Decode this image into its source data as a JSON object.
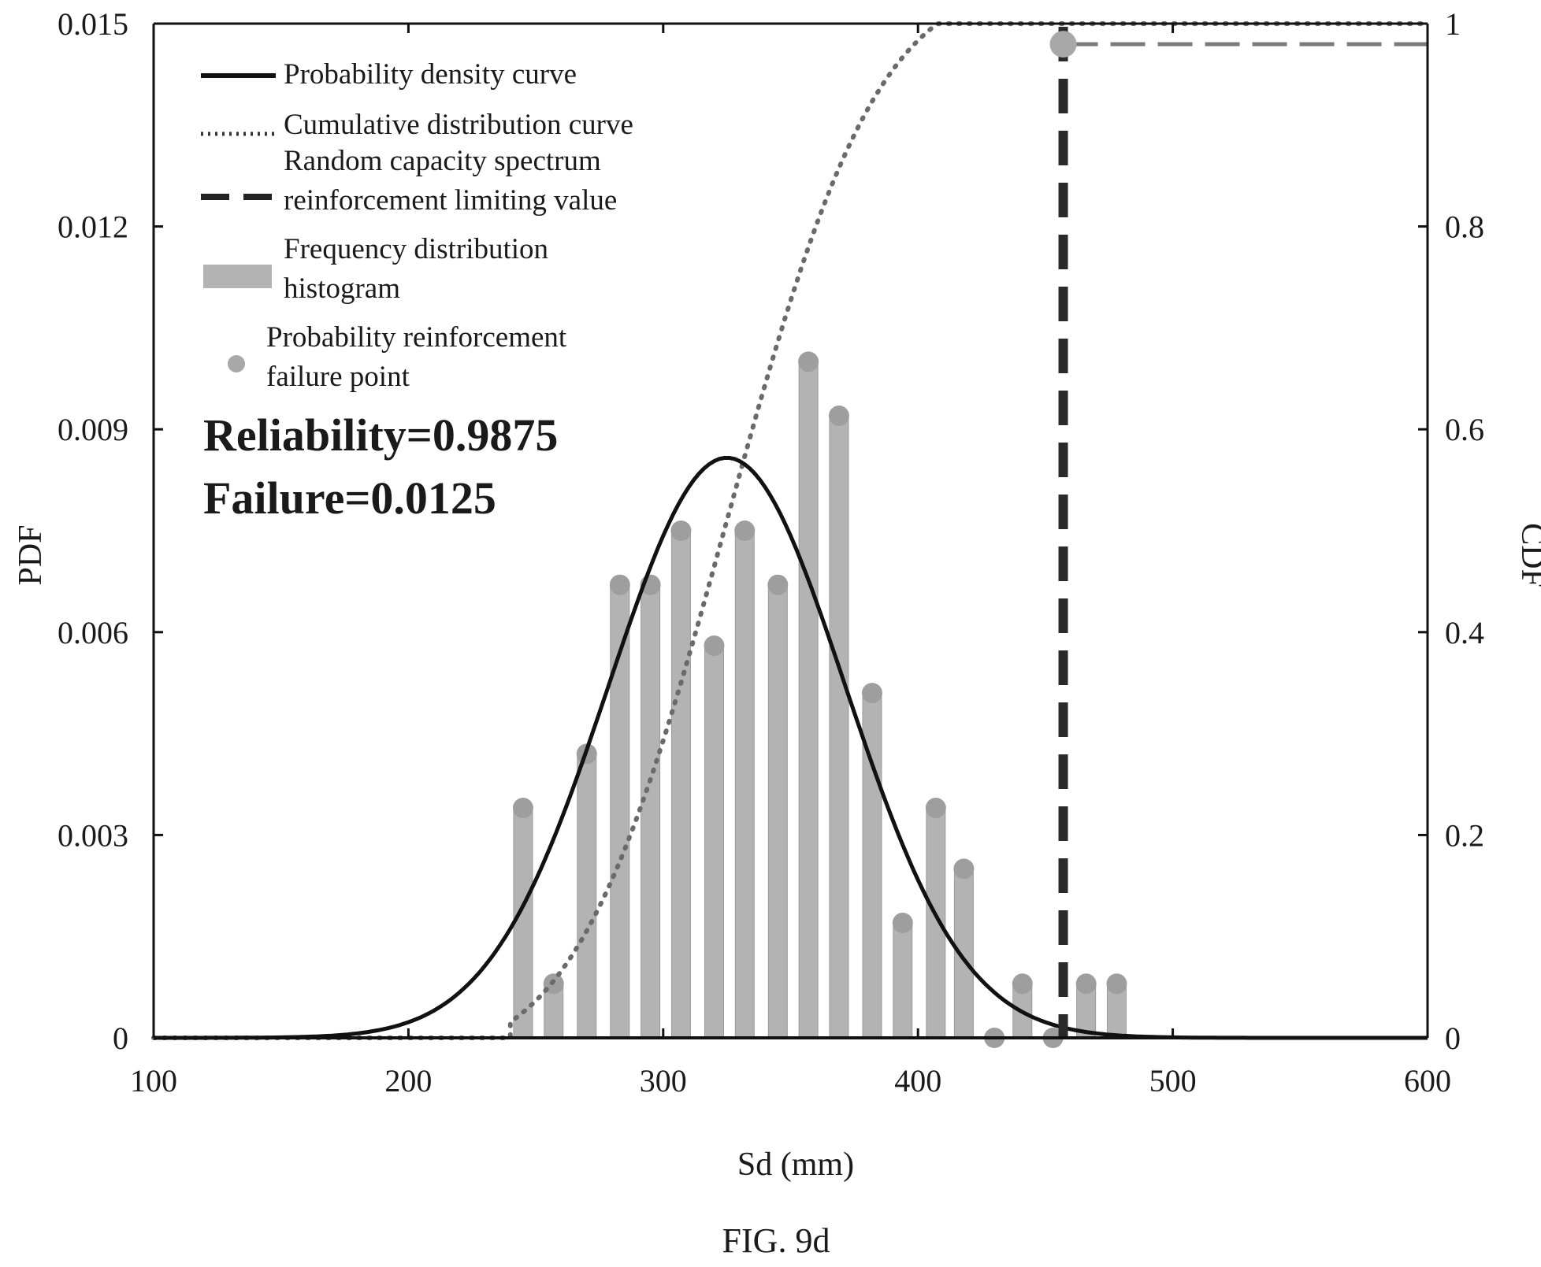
{
  "chart_data": {
    "type": "bar",
    "caption": "FIG. 9d",
    "xlabel": "Sd (mm)",
    "ylabel_left": "PDF",
    "ylabel_right": "CDF",
    "xlim": [
      100,
      600
    ],
    "ylim_left": [
      0,
      0.015
    ],
    "ylim_right": [
      0,
      1
    ],
    "x_ticks": [
      "100",
      "200",
      "300",
      "400",
      "500",
      "600"
    ],
    "x_tick_values": [
      100,
      200,
      300,
      400,
      500,
      600
    ],
    "y_left_ticks": [
      "0",
      "0.003",
      "0.006",
      "0.009",
      "0.012",
      "0.015"
    ],
    "y_left_tick_values": [
      0,
      0.003,
      0.006,
      0.009,
      0.012,
      0.015
    ],
    "y_right_ticks": [
      "0",
      "0.2",
      "0.4",
      "0.6",
      "0.8",
      "1"
    ],
    "y_right_tick_values": [
      0,
      0.2,
      0.4,
      0.6,
      0.8,
      1
    ],
    "grid": false,
    "legend": {
      "placement": "top-left",
      "entries": [
        {
          "kind": "solid-line",
          "label_lines": [
            "Probability density curve"
          ]
        },
        {
          "kind": "dotted-line",
          "label_lines": [
            "Cumulative distribution curve"
          ]
        },
        {
          "kind": "dashed-line",
          "label_lines": [
            "Random capacity spectrum",
            "reinforcement limiting value"
          ]
        },
        {
          "kind": "bar",
          "label_lines": [
            "Frequency distribution",
            "histogram"
          ]
        },
        {
          "kind": "marker",
          "label_lines": [
            "Probability reinforcement",
            "failure point"
          ]
        }
      ]
    },
    "annotations": [
      "Reliability=0.9875",
      "Failure=0.0125"
    ],
    "histogram": {
      "x": [
        245,
        257,
        270,
        283,
        295,
        307,
        320,
        332,
        345,
        357,
        369,
        382,
        394,
        407,
        418,
        430,
        441,
        453,
        466,
        478
      ],
      "pdf": [
        0.0034,
        0.0008,
        0.0042,
        0.0067,
        0.0067,
        0.0075,
        0.0058,
        0.0075,
        0.0067,
        0.01,
        0.0092,
        0.0051,
        0.0017,
        0.0034,
        0.0025,
        0,
        0.0008,
        0,
        0.0008,
        0.0008
      ]
    },
    "pdf_curve": {
      "distribution": "normal",
      "mean": 325,
      "std": 46.5
    },
    "cdf_curve": {
      "start_x": 240,
      "end_x": 600
    },
    "limiting_value_x": 457,
    "failure_point": {
      "x": 457,
      "cdf": 0.9875
    }
  }
}
